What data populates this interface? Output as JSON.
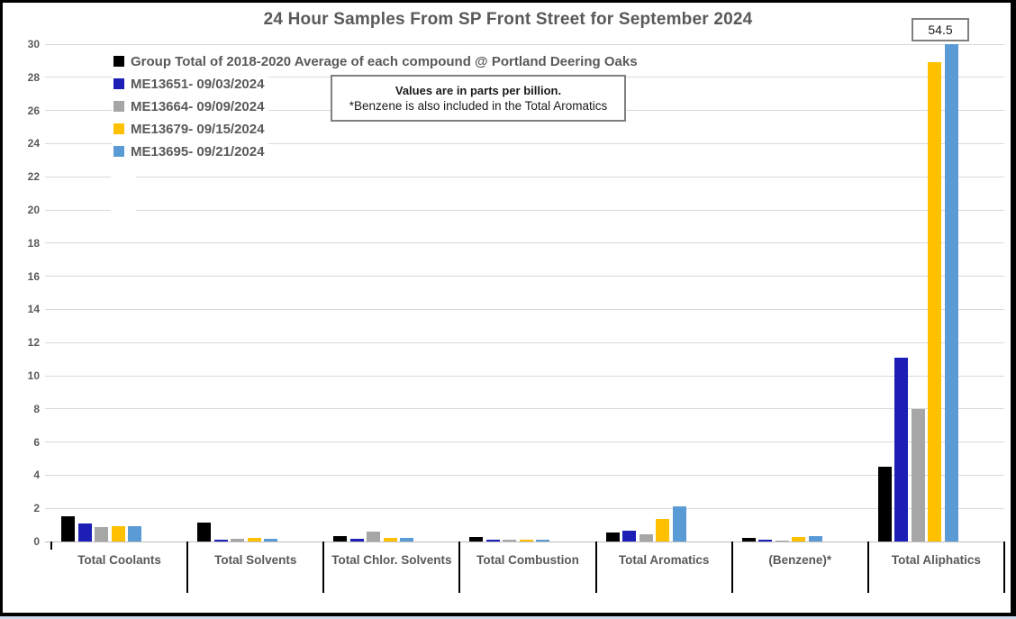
{
  "chart_data": {
    "type": "bar",
    "title": "24 Hour Samples From SP Front Street for September 2024",
    "categories": [
      "Total Coolants",
      "Total Solvents",
      "Total Chlor. Solvents",
      "Total Combustion",
      "Total Aromatics",
      "(Benzene)*",
      "Total Aliphatics"
    ],
    "series": [
      {
        "name": "Group Total of 2018-2020 Average of each compound @ Portland Deering Oaks",
        "color": "#000000",
        "values": [
          1.5,
          1.15,
          0.35,
          0.25,
          0.55,
          0.2,
          4.5
        ]
      },
      {
        "name": "ME13651- 09/03/2024",
        "color": "#1C1EB5",
        "values": [
          1.1,
          0.1,
          0.15,
          0.1,
          0.65,
          0.1,
          11.1
        ]
      },
      {
        "name": "ME13664- 09/09/2024",
        "color": "#A6A6A6",
        "values": [
          0.85,
          0.15,
          0.6,
          0.1,
          0.45,
          0.08,
          8.0
        ]
      },
      {
        "name": "ME13679- 09/15/2024",
        "color": "#FFC000",
        "values": [
          0.9,
          0.2,
          0.2,
          0.1,
          1.35,
          0.25,
          28.9
        ]
      },
      {
        "name": "ME13695- 09/21/2024",
        "color": "#5B9BD5",
        "values": [
          0.95,
          0.15,
          0.2,
          0.1,
          2.1,
          0.3,
          54.5
        ]
      }
    ],
    "ylabel": "",
    "xlabel": "",
    "ylim": [
      0,
      30
    ],
    "ytick_step": 2,
    "grid": true,
    "legend_position": "top-left",
    "annotation": {
      "line1": "Values are in parts per billion.",
      "line2": "*Benzene is also included in the Total Aromatics"
    },
    "data_label": {
      "text": "54.5",
      "series": "ME13695- 09/21/2024",
      "category": "Total Aliphatics",
      "note": "bar exceeds axis maximum and is clipped at top of plot"
    }
  },
  "colors": {
    "text": "#595959",
    "gridline": "#D9D9D9",
    "axis_line": "#BFBFBF",
    "divider": "#000000",
    "box_border": "#7F7F7F",
    "background": "#FFFFFF"
  }
}
